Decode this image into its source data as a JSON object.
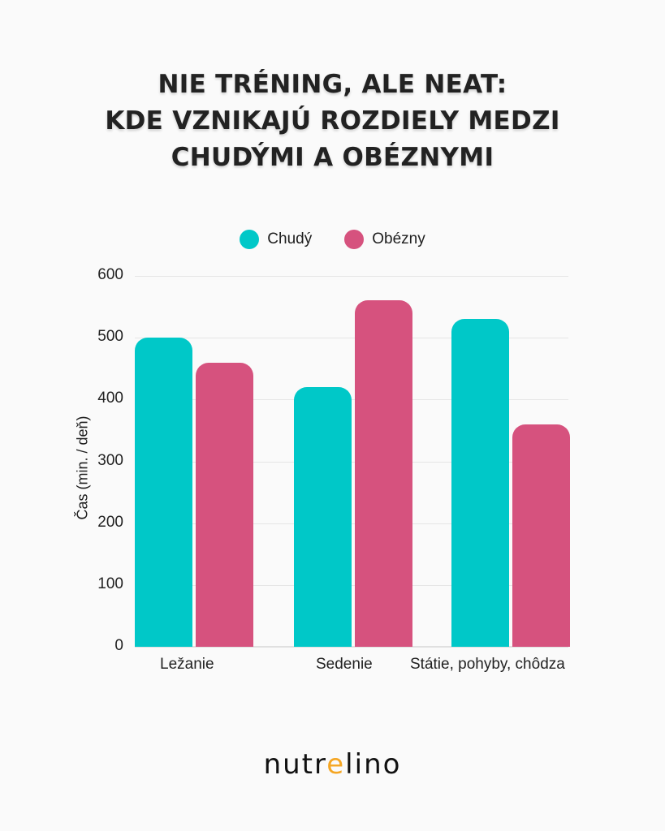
{
  "title": {
    "line1": "NIE TRÉNING, ALE NEAT:",
    "line2": "KDE VZNIKAJÚ ROZDIELY MEDZI",
    "line3": "CHUDÝMI A OBÉZNYMI"
  },
  "legend": [
    {
      "label": "Chudý",
      "color": "#00c8c8"
    },
    {
      "label": "Obézny",
      "color": "#d6527e"
    }
  ],
  "axis": {
    "ylabel": "Čas (min. / deň)",
    "yticks": [
      "600",
      "500",
      "400",
      "300",
      "200",
      "100",
      "0"
    ]
  },
  "xlabels": [
    "Ležanie",
    "Sedenie",
    "Státie, pohyby, chôdza"
  ],
  "logo": {
    "pre": "nutr",
    "accent": "e",
    "post": "lino",
    "accent_color": "#f5a623"
  },
  "chart_data": {
    "type": "bar",
    "title": "NIE TRÉNING, ALE NEAT: KDE VZNIKAJÚ ROZDIELY MEDZI CHUDÝMI A OBÉZNYMI",
    "categories": [
      "Ležanie",
      "Sedenie",
      "Státie, pohyby, chôdza"
    ],
    "series": [
      {
        "name": "Chudý",
        "color": "#00c8c8",
        "values": [
          500,
          420,
          530
        ]
      },
      {
        "name": "Obézny",
        "color": "#d6527e",
        "values": [
          460,
          560,
          360
        ]
      }
    ],
    "xlabel": "",
    "ylabel": "Čas (min. / deň)",
    "ylim": [
      0,
      600
    ],
    "yticks": [
      0,
      100,
      200,
      300,
      400,
      500,
      600
    ],
    "grid": true,
    "legend_position": "top"
  }
}
